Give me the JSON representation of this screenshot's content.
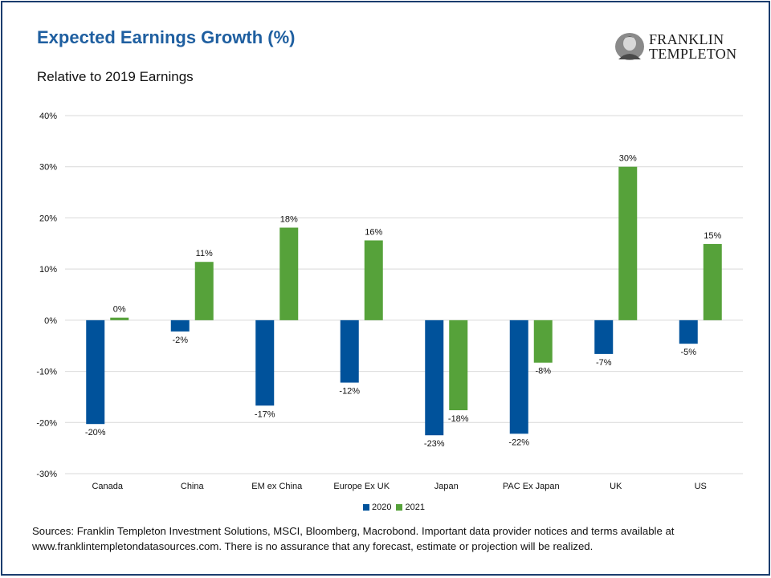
{
  "title": "Expected Earnings Growth (%)",
  "subtitle": "Relative to 2019 Earnings",
  "logo": {
    "line1": "FRANKLIN",
    "line2": "TEMPLETON"
  },
  "source": "Sources: Franklin Templeton Investment Solutions, MSCI, Bloomberg, Macrobond. Important data provider notices and terms available at www.franklintempletondatasources.com. There is no assurance that  any forecast, estimate or projection will be realized.",
  "colors": {
    "s2020": "#00529b",
    "s2021": "#56a23a",
    "title": "#1f5fa0",
    "frame": "#1b3d6e"
  },
  "chart_data": {
    "type": "bar",
    "categories": [
      "Canada",
      "China",
      "EM ex China",
      "Europe Ex UK",
      "Japan",
      "PAC Ex Japan",
      "UK",
      "US"
    ],
    "series": [
      {
        "name": "2020",
        "values": [
          -20.3,
          -2.2,
          -16.7,
          -12.2,
          -22.5,
          -22.2,
          -6.6,
          -4.6
        ],
        "labels": [
          "-20%",
          "-2%",
          "-17%",
          "-12%",
          "-23%",
          "-22%",
          "-7%",
          "-5%"
        ]
      },
      {
        "name": "2021",
        "values": [
          0.5,
          11.4,
          18.1,
          15.6,
          -17.6,
          -8.3,
          30.0,
          14.9
        ],
        "labels": [
          "0%",
          "11%",
          "18%",
          "16%",
          "-18%",
          "-8%",
          "30%",
          "15%"
        ]
      }
    ],
    "ylim": [
      -30,
      40
    ],
    "yticks": [
      "-30%",
      "-20%",
      "-10%",
      "0%",
      "10%",
      "20%",
      "30%",
      "40%"
    ],
    "grid": true,
    "legend": "bottom-center"
  }
}
